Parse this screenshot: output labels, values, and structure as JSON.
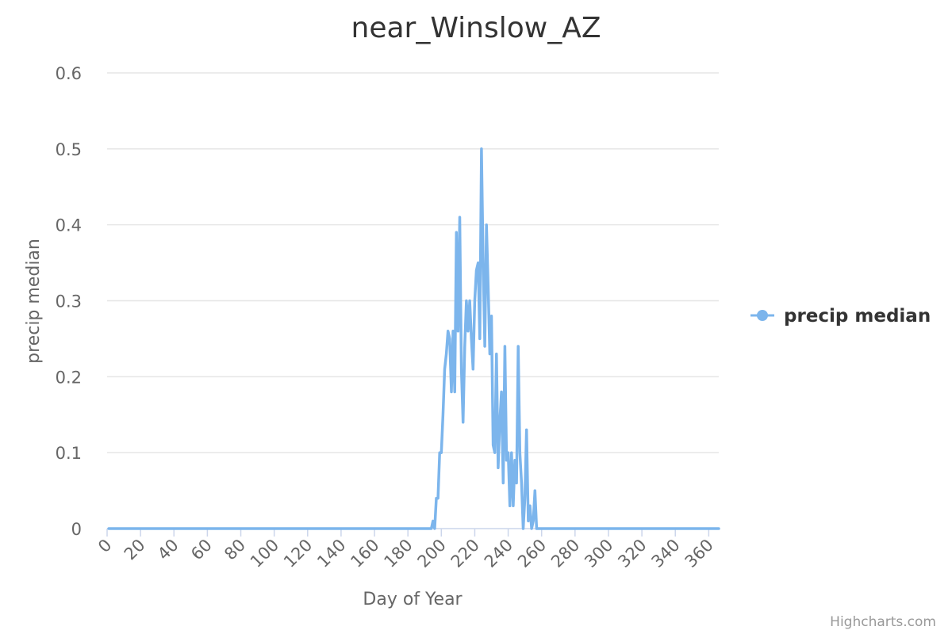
{
  "chart_data": {
    "type": "line",
    "title": "near_Winslow_AZ",
    "xlabel": "Day of Year",
    "ylabel": "precip median",
    "xlim": [
      0,
      366
    ],
    "ylim": [
      0,
      0.6
    ],
    "x_ticks": [
      0,
      20,
      40,
      60,
      80,
      100,
      120,
      140,
      160,
      180,
      200,
      220,
      240,
      260,
      280,
      300,
      320,
      340,
      360
    ],
    "y_ticks": [
      0,
      0.1,
      0.2,
      0.3,
      0.4,
      0.5,
      0.6
    ],
    "grid": "horizontal",
    "legend_position": "right",
    "series": [
      {
        "name": "precip median",
        "color": "#7cb5ec",
        "x": [
          1,
          194,
          195,
          196,
          197,
          198,
          199,
          200,
          201,
          202,
          203,
          204,
          205,
          206,
          207,
          208,
          209,
          210,
          211,
          212,
          213,
          214,
          215,
          216,
          217,
          218,
          219,
          220,
          221,
          222,
          223,
          224,
          225,
          226,
          227,
          228,
          229,
          230,
          231,
          232,
          233,
          234,
          235,
          236,
          237,
          238,
          239,
          240,
          241,
          242,
          243,
          244,
          245,
          246,
          247,
          248,
          249,
          250,
          251,
          252,
          253,
          254,
          255,
          256,
          257,
          258,
          259,
          260,
          261,
          262,
          263,
          264,
          265,
          266,
          267,
          280,
          300,
          320,
          340,
          366
        ],
        "values": [
          0,
          0,
          0.01,
          0,
          0.04,
          0.04,
          0.1,
          0.1,
          0.15,
          0.21,
          0.23,
          0.26,
          0.25,
          0.18,
          0.26,
          0.18,
          0.39,
          0.26,
          0.41,
          0.21,
          0.14,
          0.24,
          0.3,
          0.26,
          0.3,
          0.25,
          0.21,
          0.3,
          0.34,
          0.35,
          0.25,
          0.5,
          0.35,
          0.24,
          0.4,
          0.32,
          0.23,
          0.28,
          0.11,
          0.1,
          0.23,
          0.08,
          0.14,
          0.18,
          0.06,
          0.24,
          0.09,
          0.1,
          0.03,
          0.1,
          0.03,
          0.09,
          0.06,
          0.24,
          0.1,
          0.06,
          0,
          0.04,
          0.13,
          0.01,
          0.03,
          0,
          0.01,
          0.05,
          0,
          0,
          0,
          0,
          0,
          0,
          0,
          0,
          0,
          0,
          0,
          0,
          0,
          0,
          0,
          0
        ]
      }
    ]
  },
  "credits": "Highcharts.com"
}
